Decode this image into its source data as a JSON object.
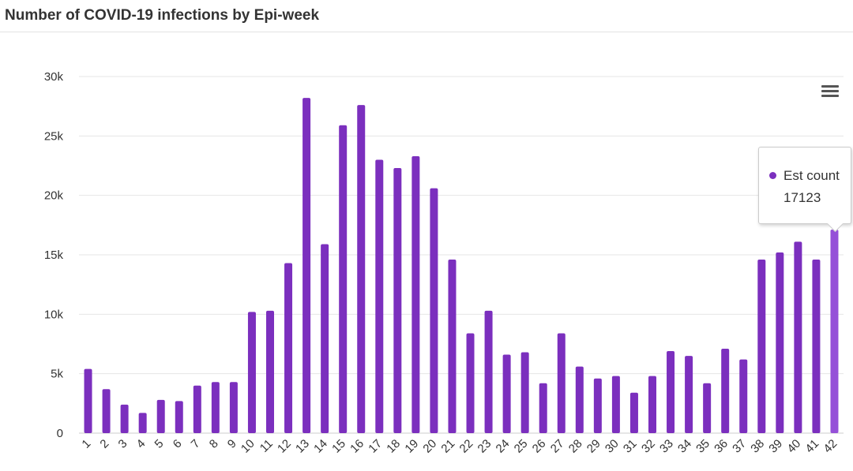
{
  "header": {
    "title": "Number of COVID-19 infections by Epi-week"
  },
  "colors": {
    "bar": "#7b2fbe",
    "bar_hover": "#9550d8",
    "grid": "#e6e6e6",
    "axis": "#333333"
  },
  "icons": {
    "menu": "hamburger-menu-icon"
  },
  "tooltip": {
    "series": "Est count",
    "value": "17123",
    "active_index": 41
  },
  "chart_data": {
    "type": "bar",
    "categories": [
      "1",
      "2",
      "3",
      "4",
      "5",
      "6",
      "7",
      "8",
      "9",
      "10",
      "11",
      "12",
      "13",
      "14",
      "15",
      "16",
      "17",
      "18",
      "19",
      "20",
      "21",
      "22",
      "23",
      "24",
      "25",
      "26",
      "27",
      "28",
      "29",
      "30",
      "31",
      "32",
      "33",
      "34",
      "35",
      "36",
      "37",
      "38",
      "39",
      "40",
      "41",
      "42"
    ],
    "series": [
      {
        "name": "Est count",
        "values": [
          5400,
          3700,
          2400,
          1700,
          2800,
          2700,
          4000,
          4300,
          4300,
          10200,
          10300,
          14300,
          28200,
          15900,
          25900,
          27600,
          23000,
          22300,
          23300,
          20600,
          14600,
          8400,
          10300,
          6600,
          6800,
          4200,
          8400,
          5600,
          4600,
          4800,
          3400,
          4800,
          6900,
          6500,
          4200,
          7100,
          6200,
          14600,
          15200,
          16100,
          14600,
          17123
        ]
      }
    ],
    "yticks": [
      "0",
      "5k",
      "10k",
      "15k",
      "20k",
      "25k",
      "30k"
    ],
    "ylim": [
      0,
      30000
    ],
    "grid": true,
    "legend": "none"
  }
}
